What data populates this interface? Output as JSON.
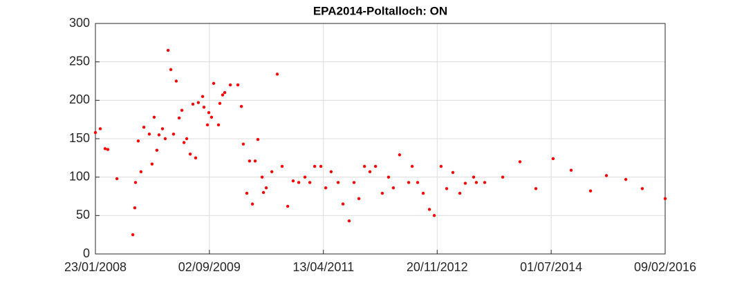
{
  "chart_data": {
    "type": "scatter",
    "title": "EPA2014-Poltalloch: ON",
    "x": [
      "2008-01-23",
      "2008-02-17",
      "2008-03-13",
      "2008-03-27",
      "2008-05-13",
      "2008-08-03",
      "2008-08-13",
      "2008-08-17",
      "2008-08-31",
      "2008-09-14",
      "2008-09-29",
      "2008-10-27",
      "2008-11-10",
      "2008-11-21",
      "2008-12-05",
      "2008-12-16",
      "2009-01-03",
      "2009-01-17",
      "2009-02-01",
      "2009-02-15",
      "2009-03-01",
      "2009-03-15",
      "2009-03-30",
      "2009-04-13",
      "2009-04-24",
      "2009-05-08",
      "2009-05-26",
      "2009-06-09",
      "2009-06-23",
      "2009-07-07",
      "2009-07-29",
      "2009-08-05",
      "2009-08-23",
      "2009-08-30",
      "2009-09-13",
      "2009-09-24",
      "2009-10-19",
      "2009-10-26",
      "2009-11-09",
      "2009-11-20",
      "2009-12-19",
      "2010-01-27",
      "2010-02-14",
      "2010-02-24",
      "2010-03-14",
      "2010-03-28",
      "2010-04-12",
      "2010-04-26",
      "2010-05-10",
      "2010-06-01",
      "2010-06-08",
      "2010-06-22",
      "2010-07-21",
      "2010-08-18",
      "2010-09-12",
      "2010-10-11",
      "2010-11-08",
      "2010-12-07",
      "2011-01-08",
      "2011-02-02",
      "2011-02-27",
      "2011-03-31",
      "2011-04-25",
      "2011-05-23",
      "2011-06-28",
      "2011-07-23",
      "2011-08-24",
      "2011-09-18",
      "2011-10-13",
      "2011-11-11",
      "2011-12-09",
      "2012-01-07",
      "2012-02-11",
      "2012-03-14",
      "2012-04-08",
      "2012-05-10",
      "2012-06-26",
      "2012-07-14",
      "2012-08-11",
      "2012-09-09",
      "2012-10-11",
      "2012-11-05",
      "2012-12-10",
      "2013-01-08",
      "2013-02-09",
      "2013-03-17",
      "2013-04-14",
      "2013-05-27",
      "2013-06-10",
      "2013-07-23",
      "2013-10-24",
      "2014-01-21",
      "2014-04-13",
      "2014-07-11",
      "2014-10-12",
      "2015-01-20",
      "2015-04-12",
      "2015-07-21",
      "2015-10-14",
      "2016-02-09"
    ],
    "values": [
      158,
      163,
      137,
      136,
      98,
      25,
      60,
      93,
      147,
      107,
      165,
      156,
      117,
      178,
      135,
      155,
      163,
      150,
      265,
      240,
      156,
      225,
      177,
      187,
      145,
      150,
      130,
      195,
      125,
      197,
      205,
      191,
      168,
      184,
      178,
      222,
      168,
      196,
      207,
      210,
      220,
      220,
      192,
      143,
      79,
      121,
      65,
      121,
      149,
      100,
      80,
      86,
      107,
      234,
      114,
      62,
      95,
      93,
      100,
      93,
      114,
      114,
      86,
      107,
      93,
      65,
      43,
      93,
      72,
      114,
      107,
      114,
      79,
      100,
      86,
      129,
      93,
      114,
      93,
      79,
      58,
      50,
      114,
      85,
      106,
      79,
      92,
      100,
      93,
      93,
      100,
      120,
      85,
      124,
      109,
      82,
      102,
      97,
      85,
      72
    ],
    "color": "#ff0000",
    "xlim": [
      "2008-01-23",
      "2016-02-09"
    ],
    "xticks": [
      {
        "value": "2008-01-23",
        "label": "23/01/2008"
      },
      {
        "value": "2009-09-02",
        "label": "02/09/2009"
      },
      {
        "value": "2011-04-13",
        "label": "13/04/2011"
      },
      {
        "value": "2012-11-20",
        "label": "20/11/2012"
      },
      {
        "value": "2014-07-01",
        "label": "01/07/2014"
      },
      {
        "value": "2016-02-09",
        "label": "09/02/2016"
      }
    ],
    "ylim": [
      0,
      300
    ],
    "yticks": [
      0,
      50,
      100,
      150,
      200,
      250,
      300
    ],
    "grid": true
  }
}
